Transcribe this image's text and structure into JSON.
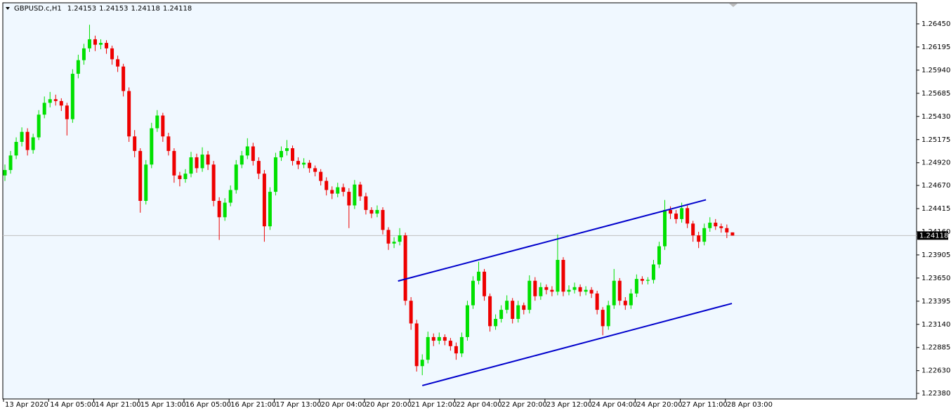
{
  "chart_data": {
    "type": "candlestick",
    "title": "GBPUSD.c,H1",
    "header_values": [
      1.24153,
      1.24153,
      1.24118,
      1.24118
    ],
    "bull_color": "#00e000",
    "bear_color": "#ee0000",
    "background": "#f0f8ff",
    "current_price": 1.24118,
    "ylim": [
      1.22326,
      1.26674
    ],
    "yticks": [
      {
        "value": 1.2645,
        "label": "1.26450"
      },
      {
        "value": 1.26195,
        "label": "1.26195"
      },
      {
        "value": 1.2594,
        "label": "1.25940"
      },
      {
        "value": 1.25685,
        "label": "1.25685"
      },
      {
        "value": 1.2543,
        "label": "1.25430"
      },
      {
        "value": 1.25175,
        "label": "1.25175"
      },
      {
        "value": 1.2492,
        "label": "1.24920"
      },
      {
        "value": 1.2467,
        "label": "1.24670"
      },
      {
        "value": 1.24415,
        "label": "1.24415"
      },
      {
        "value": 1.2416,
        "label": "1.24160"
      },
      {
        "value": 1.23905,
        "label": "1.23905"
      },
      {
        "value": 1.2365,
        "label": "1.23650"
      },
      {
        "value": 1.23395,
        "label": "1.23395"
      },
      {
        "value": 1.2314,
        "label": "1.23140"
      },
      {
        "value": 1.22885,
        "label": "1.22885"
      },
      {
        "value": 1.2263,
        "label": "1.22630"
      },
      {
        "value": 1.2238,
        "label": "1.22380"
      }
    ],
    "xticks": [
      {
        "value": 0,
        "label": "13 Apr 2020"
      },
      {
        "value": 8,
        "label": "14 Apr 05:00"
      },
      {
        "value": 16,
        "label": "14 Apr 21:00"
      },
      {
        "value": 24,
        "label": "15 Apr 13:00"
      },
      {
        "value": 32,
        "label": "16 Apr 05:00"
      },
      {
        "value": 40,
        "label": "16 Apr 21:00"
      },
      {
        "value": 48,
        "label": "17 Apr 13:00"
      },
      {
        "value": 56,
        "label": "20 Apr 04:00"
      },
      {
        "value": 64,
        "label": "20 Apr 20:00"
      },
      {
        "value": 72,
        "label": "21 Apr 12:00"
      },
      {
        "value": 80,
        "label": "22 Apr 04:00"
      },
      {
        "value": 88,
        "label": "22 Apr 20:00"
      },
      {
        "value": 96,
        "label": "23 Apr 12:00"
      },
      {
        "value": 104,
        "label": "24 Apr 04:00"
      },
      {
        "value": 112,
        "label": "24 Apr 20:00"
      },
      {
        "value": 120,
        "label": "27 Apr 11:00"
      },
      {
        "value": 128,
        "label": "28 Apr 03:00"
      }
    ],
    "trendlines": [
      {
        "color": "#0000cc",
        "points": [
          [
            69.7,
            1.23617
          ],
          [
            124.3,
            1.24512
          ]
        ]
      },
      {
        "color": "#0000cc",
        "points": [
          [
            74.0,
            1.22466
          ],
          [
            128.9,
            1.2337
          ]
        ]
      }
    ],
    "candles": [
      [
        1.2478,
        1.249,
        1.2472,
        1.2484
      ],
      [
        1.2484,
        1.2505,
        1.248,
        1.25
      ],
      [
        1.25,
        1.252,
        1.2496,
        1.2515
      ],
      [
        1.2515,
        1.2531,
        1.251,
        1.2526
      ],
      [
        1.2526,
        1.253,
        1.25,
        1.2506
      ],
      [
        1.2506,
        1.2524,
        1.2502,
        1.252
      ],
      [
        1.252,
        1.255,
        1.2517,
        1.2545
      ],
      [
        1.2545,
        1.2565,
        1.2541,
        1.2558
      ],
      [
        1.2558,
        1.257,
        1.2553,
        1.2562
      ],
      [
        1.2562,
        1.2567,
        1.2555,
        1.256
      ],
      [
        1.256,
        1.2563,
        1.2549,
        1.2555
      ],
      [
        1.2555,
        1.2558,
        1.2522,
        1.254
      ],
      [
        1.254,
        1.2595,
        1.2536,
        1.259
      ],
      [
        1.259,
        1.2611,
        1.2585,
        1.2605
      ],
      [
        1.2605,
        1.2623,
        1.26,
        1.2618
      ],
      [
        1.2618,
        1.2644,
        1.2614,
        1.2628
      ],
      [
        1.2628,
        1.2632,
        1.2615,
        1.2622
      ],
      [
        1.2622,
        1.2628,
        1.2617,
        1.2624
      ],
      [
        1.2624,
        1.2627,
        1.2612,
        1.2618
      ],
      [
        1.2618,
        1.2621,
        1.26,
        1.2606
      ],
      [
        1.2606,
        1.261,
        1.2592,
        1.2598
      ],
      [
        1.2598,
        1.2601,
        1.2565,
        1.2571
      ],
      [
        1.2571,
        1.2575,
        1.2515,
        1.2521
      ],
      [
        1.2521,
        1.2528,
        1.2498,
        1.2505
      ],
      [
        1.2505,
        1.2508,
        1.2437,
        1.245
      ],
      [
        1.245,
        1.2495,
        1.2446,
        1.249
      ],
      [
        1.249,
        1.2536,
        1.2486,
        1.253
      ],
      [
        1.253,
        1.255,
        1.2526,
        1.2544
      ],
      [
        1.2544,
        1.2547,
        1.2515,
        1.2521
      ],
      [
        1.2521,
        1.2525,
        1.25,
        1.2505
      ],
      [
        1.2505,
        1.2508,
        1.247,
        1.2478
      ],
      [
        1.2478,
        1.2482,
        1.2466,
        1.2474
      ],
      [
        1.2474,
        1.2485,
        1.247,
        1.248
      ],
      [
        1.248,
        1.2504,
        1.2476,
        1.2498
      ],
      [
        1.2498,
        1.2502,
        1.2481,
        1.2486
      ],
      [
        1.2486,
        1.2509,
        1.2482,
        1.2501
      ],
      [
        1.2501,
        1.2505,
        1.2484,
        1.249
      ],
      [
        1.249,
        1.2494,
        1.2444,
        1.245
      ],
      [
        1.245,
        1.2454,
        1.2407,
        1.2432
      ],
      [
        1.2432,
        1.2453,
        1.2428,
        1.2448
      ],
      [
        1.2448,
        1.2467,
        1.2444,
        1.2462
      ],
      [
        1.2462,
        1.2495,
        1.2458,
        1.249
      ],
      [
        1.249,
        1.2505,
        1.2486,
        1.25
      ],
      [
        1.25,
        1.2519,
        1.2496,
        1.251
      ],
      [
        1.251,
        1.2514,
        1.2489,
        1.2494
      ],
      [
        1.2494,
        1.2498,
        1.2474,
        1.248
      ],
      [
        1.248,
        1.2484,
        1.2405,
        1.2422
      ],
      [
        1.2422,
        1.2465,
        1.2418,
        1.246
      ],
      [
        1.246,
        1.2503,
        1.2456,
        1.2498
      ],
      [
        1.2498,
        1.251,
        1.2494,
        1.2505
      ],
      [
        1.2505,
        1.2517,
        1.25,
        1.2508
      ],
      [
        1.2508,
        1.2511,
        1.2489,
        1.2494
      ],
      [
        1.2494,
        1.2498,
        1.2485,
        1.249
      ],
      [
        1.249,
        1.2497,
        1.2486,
        1.2492
      ],
      [
        1.2492,
        1.2495,
        1.2481,
        1.2486
      ],
      [
        1.2486,
        1.2489,
        1.2477,
        1.2482
      ],
      [
        1.2482,
        1.2485,
        1.2467,
        1.2472
      ],
      [
        1.2472,
        1.2476,
        1.2456,
        1.2462
      ],
      [
        1.2462,
        1.2466,
        1.2452,
        1.2458
      ],
      [
        1.2458,
        1.247,
        1.2454,
        1.2465
      ],
      [
        1.2465,
        1.2469,
        1.2455,
        1.246
      ],
      [
        1.246,
        1.2464,
        1.242,
        1.2445
      ],
      [
        1.2445,
        1.2473,
        1.2441,
        1.2468
      ],
      [
        1.2468,
        1.2471,
        1.245,
        1.2455
      ],
      [
        1.2455,
        1.2459,
        1.2435,
        1.244
      ],
      [
        1.244,
        1.2443,
        1.2431,
        1.2436
      ],
      [
        1.2436,
        1.2445,
        1.2432,
        1.244
      ],
      [
        1.244,
        1.2443,
        1.2413,
        1.2418
      ],
      [
        1.2418,
        1.2421,
        1.2396,
        1.2403
      ],
      [
        1.2403,
        1.241,
        1.2398,
        1.2405
      ],
      [
        1.2405,
        1.242,
        1.2401,
        1.2412
      ],
      [
        1.2412,
        1.2415,
        1.2335,
        1.234
      ],
      [
        1.234,
        1.2344,
        1.2308,
        1.2315
      ],
      [
        1.2315,
        1.2319,
        1.2262,
        1.2268
      ],
      [
        1.2268,
        1.2281,
        1.2258,
        1.2275
      ],
      [
        1.2275,
        1.2306,
        1.2271,
        1.23
      ],
      [
        1.23,
        1.2304,
        1.229,
        1.2296
      ],
      [
        1.2296,
        1.2305,
        1.2292,
        1.23
      ],
      [
        1.23,
        1.2303,
        1.2291,
        1.2296
      ],
      [
        1.2296,
        1.2299,
        1.2285,
        1.229
      ],
      [
        1.229,
        1.2294,
        1.2275,
        1.2282
      ],
      [
        1.2282,
        1.2305,
        1.2278,
        1.23
      ],
      [
        1.23,
        1.234,
        1.2296,
        1.2335
      ],
      [
        1.2335,
        1.2367,
        1.2331,
        1.2362
      ],
      [
        1.2362,
        1.2383,
        1.2358,
        1.2372
      ],
      [
        1.2372,
        1.2375,
        1.234,
        1.2345
      ],
      [
        1.2345,
        1.2348,
        1.2306,
        1.2312
      ],
      [
        1.2312,
        1.2325,
        1.2308,
        1.232
      ],
      [
        1.232,
        1.2335,
        1.2316,
        1.233
      ],
      [
        1.233,
        1.2346,
        1.2326,
        1.234
      ],
      [
        1.234,
        1.2343,
        1.2315,
        1.232
      ],
      [
        1.232,
        1.234,
        1.2316,
        1.2335
      ],
      [
        1.2335,
        1.2338,
        1.2325,
        1.233
      ],
      [
        1.233,
        1.2368,
        1.2326,
        1.2362
      ],
      [
        1.2362,
        1.2366,
        1.234,
        1.2345
      ],
      [
        1.2345,
        1.236,
        1.2341,
        1.2355
      ],
      [
        1.2355,
        1.2358,
        1.2347,
        1.2352
      ],
      [
        1.2352,
        1.2356,
        1.2345,
        1.235
      ],
      [
        1.235,
        1.2413,
        1.2346,
        1.2385
      ],
      [
        1.2385,
        1.2388,
        1.2345,
        1.235
      ],
      [
        1.235,
        1.2357,
        1.2346,
        1.2352
      ],
      [
        1.2352,
        1.236,
        1.2348,
        1.2355
      ],
      [
        1.2355,
        1.2358,
        1.2345,
        1.235
      ],
      [
        1.235,
        1.2356,
        1.2346,
        1.2352
      ],
      [
        1.2352,
        1.2355,
        1.2343,
        1.2348
      ],
      [
        1.2348,
        1.2351,
        1.2325,
        1.233
      ],
      [
        1.233,
        1.2333,
        1.2302,
        1.2312
      ],
      [
        1.2312,
        1.234,
        1.2308,
        1.2335
      ],
      [
        1.2335,
        1.2375,
        1.2331,
        1.2362
      ],
      [
        1.2362,
        1.2365,
        1.2335,
        1.234
      ],
      [
        1.234,
        1.2344,
        1.233,
        1.2335
      ],
      [
        1.2335,
        1.2353,
        1.2331,
        1.2348
      ],
      [
        1.2348,
        1.2369,
        1.2344,
        1.2364
      ],
      [
        1.2364,
        1.2367,
        1.2358,
        1.2362
      ],
      [
        1.2362,
        1.2366,
        1.2358,
        1.2363
      ],
      [
        1.2363,
        1.2385,
        1.2359,
        1.238
      ],
      [
        1.238,
        1.2405,
        1.2376,
        1.24
      ],
      [
        1.24,
        1.2451,
        1.2396,
        1.244
      ],
      [
        1.244,
        1.2444,
        1.243,
        1.2436
      ],
      [
        1.2436,
        1.244,
        1.2425,
        1.243
      ],
      [
        1.243,
        1.2448,
        1.2426,
        1.2442
      ],
      [
        1.2442,
        1.2445,
        1.242,
        1.2425
      ],
      [
        1.2425,
        1.2428,
        1.2405,
        1.2412
      ],
      [
        1.2412,
        1.2416,
        1.2398,
        1.2405
      ],
      [
        1.2405,
        1.2425,
        1.2401,
        1.242
      ],
      [
        1.242,
        1.2432,
        1.2416,
        1.2426
      ],
      [
        1.2426,
        1.243,
        1.2418,
        1.2422
      ],
      [
        1.2422,
        1.2425,
        1.2415,
        1.242
      ],
      [
        1.242,
        1.2424,
        1.2409,
        1.24153
      ],
      [
        1.24153,
        1.24153,
        1.24118,
        1.24118
      ]
    ]
  }
}
